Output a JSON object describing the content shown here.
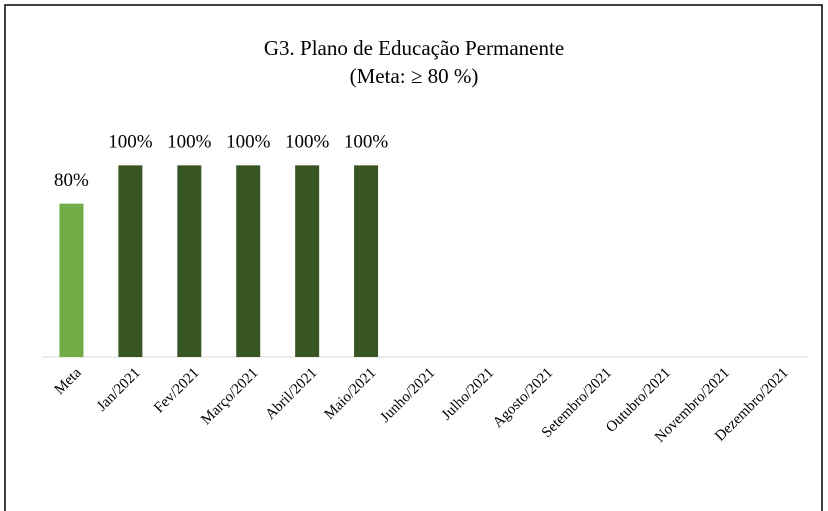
{
  "chart_data": {
    "type": "bar",
    "title": "G3. Plano de Educação Permanente",
    "subtitle": "(Meta: ≥ 80 %)",
    "categories": [
      "Meta",
      "Jan/2021",
      "Fev/2021",
      "Março/2021",
      "Abril/2021",
      "Maio/2021",
      "Junho/2021",
      "Julho/2021",
      "Agosto/2021",
      "Setembro/2021",
      "Outubro/2021",
      "Novembro/2021",
      "Dezembro/2021"
    ],
    "values": [
      80,
      100,
      100,
      100,
      100,
      100,
      null,
      null,
      null,
      null,
      null,
      null,
      null
    ],
    "value_labels": [
      "80%",
      "100%",
      "100%",
      "100%",
      "100%",
      "100%",
      null,
      null,
      null,
      null,
      null,
      null,
      null
    ],
    "colors": [
      "#70ad47",
      "#375623",
      "#375623",
      "#375623",
      "#375623",
      "#375623",
      "#375623",
      "#375623",
      "#375623",
      "#375623",
      "#375623",
      "#375623",
      "#375623"
    ],
    "ylim": [
      0,
      120
    ]
  }
}
